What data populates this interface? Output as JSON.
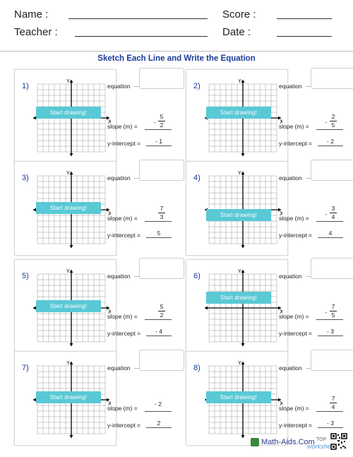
{
  "header": {
    "name_label": "Name :",
    "teacher_label": "Teacher :",
    "score_label": "Score :",
    "date_label": "Date :"
  },
  "title": "Sketch Each Line and Write the Equation",
  "labels": {
    "equation": "equation",
    "slope": "slope (m) =",
    "yint": "y-intercept =",
    "start_drawing": "Start drawing!",
    "axis_x": "X",
    "axis_y": "Y"
  },
  "problems": [
    {
      "num": "1)",
      "slope": {
        "sign": "-",
        "num": "5",
        "den": "2"
      },
      "yint": "- 1"
    },
    {
      "num": "2)",
      "slope": {
        "sign": "-",
        "num": "2",
        "den": "5"
      },
      "yint": "- 2"
    },
    {
      "num": "3)",
      "slope": {
        "sign": "",
        "num": "7",
        "den": "3"
      },
      "yint": "5"
    },
    {
      "num": "4)",
      "slope": {
        "sign": "-",
        "num": "3",
        "den": "4"
      },
      "yint": "4"
    },
    {
      "num": "5)",
      "slope": {
        "sign": "",
        "num": "5",
        "den": "2"
      },
      "yint": "- 4"
    },
    {
      "num": "6)",
      "slope": {
        "sign": "-",
        "num": "7",
        "den": "5"
      },
      "yint": "- 3"
    },
    {
      "num": "7)",
      "slope": {
        "sign": "",
        "whole": "- 2"
      },
      "yint": "2"
    },
    {
      "num": "8)",
      "slope": {
        "sign": "",
        "num": "7",
        "den": "4"
      },
      "yint": "- 3"
    }
  ],
  "footer": {
    "brand": "Math-Aids.Com",
    "top": "TOP",
    "worksheets": "worksheets"
  }
}
